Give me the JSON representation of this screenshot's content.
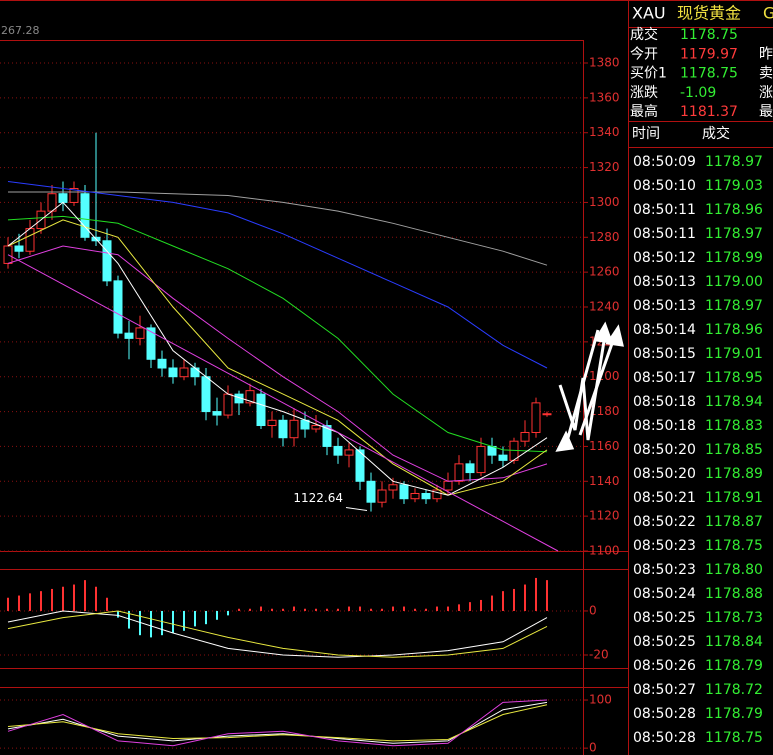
{
  "header": {
    "symbol": "XAU",
    "name": "现货黄金",
    "code": "G"
  },
  "quote": [
    {
      "label": "成交",
      "value": "1178.75",
      "color": "#33ee33"
    },
    {
      "label": "今开",
      "value": "1179.97",
      "color": "#ff3b3b",
      "extra": "昨"
    },
    {
      "label": "买价1",
      "value": "1178.75",
      "color": "#33ee33",
      "extra": "卖"
    },
    {
      "label": "涨跌",
      "value": "-1.09",
      "color": "#33ee33",
      "extra": "涨"
    },
    {
      "label": "最高",
      "value": "1181.37",
      "color": "#ff3b3b",
      "extra": "最"
    }
  ],
  "trades": {
    "columns": [
      "时间",
      "成交"
    ],
    "color": "#33ee33",
    "rows": [
      [
        "08:50:09",
        "1178.97"
      ],
      [
        "08:50:10",
        "1179.03"
      ],
      [
        "08:50:11",
        "1178.96"
      ],
      [
        "08:50:11",
        "1178.97"
      ],
      [
        "08:50:12",
        "1178.99"
      ],
      [
        "08:50:13",
        "1179.00"
      ],
      [
        "08:50:13",
        "1178.97"
      ],
      [
        "08:50:14",
        "1178.96"
      ],
      [
        "08:50:15",
        "1179.01"
      ],
      [
        "08:50:17",
        "1178.95"
      ],
      [
        "08:50:18",
        "1178.94"
      ],
      [
        "08:50:18",
        "1178.83"
      ],
      [
        "08:50:20",
        "1178.85"
      ],
      [
        "08:50:20",
        "1178.89"
      ],
      [
        "08:50:21",
        "1178.91"
      ],
      [
        "08:50:22",
        "1178.87"
      ],
      [
        "08:50:23",
        "1178.75"
      ],
      [
        "08:50:23",
        "1178.80"
      ],
      [
        "08:50:24",
        "1178.88"
      ],
      [
        "08:50:25",
        "1178.73"
      ],
      [
        "08:50:25",
        "1178.84"
      ],
      [
        "08:50:26",
        "1178.79"
      ],
      [
        "08:50:27",
        "1178.72"
      ],
      [
        "08:50:28",
        "1178.79"
      ],
      [
        "08:50:28",
        "1178.75"
      ]
    ]
  },
  "chart_data": [
    {
      "type": "candlestick",
      "corner_label": "267.28",
      "up_color": "#ff3232",
      "down_color": "#54ffff",
      "xlim": [
        -0.727,
        52.273
      ],
      "ylim": [
        1100,
        1393.2
      ],
      "yticks": [
        1100,
        1120,
        1140,
        1160,
        1180,
        1200,
        1220,
        1240,
        1260,
        1280,
        1300,
        1320,
        1340,
        1360,
        1380
      ],
      "open": [
        1265,
        1275,
        1272,
        1285,
        1295,
        1305,
        1300,
        1305,
        1280,
        1278,
        1255,
        1225,
        1222,
        1228,
        1210,
        1205,
        1200,
        1205,
        1200,
        1180,
        1178,
        1190,
        1185,
        1190,
        1172,
        1175,
        1165,
        1175,
        1170,
        1172,
        1160,
        1155,
        1158,
        1140,
        1128,
        1135,
        1138,
        1130,
        1133,
        1130,
        1135,
        1140,
        1150,
        1145,
        1160,
        1155,
        1152,
        1163,
        1168,
        1178.75
      ],
      "high": [
        1280,
        1282,
        1290,
        1300,
        1310,
        1312,
        1312,
        1310,
        1340,
        1285,
        1258,
        1232,
        1235,
        1230,
        1215,
        1210,
        1210,
        1208,
        1205,
        1188,
        1195,
        1192,
        1196,
        1193,
        1180,
        1178,
        1182,
        1180,
        1178,
        1175,
        1165,
        1162,
        1160,
        1145,
        1140,
        1142,
        1140,
        1136,
        1135,
        1138,
        1145,
        1155,
        1152,
        1165,
        1165,
        1160,
        1165,
        1175,
        1188,
        1180
      ],
      "low": [
        1262,
        1268,
        1270,
        1282,
        1290,
        1295,
        1298,
        1278,
        1275,
        1252,
        1222,
        1210,
        1218,
        1205,
        1200,
        1196,
        1198,
        1195,
        1175,
        1172,
        1176,
        1178,
        1183,
        1170,
        1165,
        1160,
        1160,
        1165,
        1168,
        1155,
        1150,
        1148,
        1135,
        1122.64,
        1125,
        1130,
        1127,
        1128,
        1127,
        1128,
        1132,
        1138,
        1140,
        1143,
        1150,
        1148,
        1150,
        1160,
        1165,
        1177
      ],
      "close": [
        1275,
        1272,
        1285,
        1295,
        1305,
        1300,
        1308,
        1280,
        1278,
        1255,
        1225,
        1222,
        1228,
        1210,
        1205,
        1200,
        1205,
        1200,
        1180,
        1178,
        1190,
        1185,
        1192,
        1172,
        1175,
        1165,
        1175,
        1170,
        1172,
        1160,
        1155,
        1158,
        1140,
        1128,
        1135,
        1138,
        1130,
        1133,
        1130,
        1135,
        1140,
        1150,
        1145,
        1160,
        1155,
        1152,
        1163,
        1168,
        1185,
        1178.75
      ],
      "series": [
        {
          "color": "#a0a0a0",
          "x": [
            0,
            5,
            10,
            15,
            20,
            25,
            30,
            35,
            40,
            45,
            49
          ],
          "values": [
            1306,
            1306,
            1306,
            1305,
            1304,
            1300,
            1295,
            1288,
            1280,
            1272,
            1264
          ]
        },
        {
          "color": "#2a3cff",
          "x": [
            0,
            5,
            10,
            15,
            20,
            25,
            30,
            35,
            40,
            45,
            49
          ],
          "values": [
            1312,
            1308,
            1304,
            1300,
            1294,
            1282,
            1268,
            1254,
            1240,
            1218,
            1205
          ]
        },
        {
          "color": "#22dd22",
          "x": [
            0,
            5,
            10,
            15,
            20,
            25,
            30,
            35,
            40,
            45,
            49
          ],
          "values": [
            1290,
            1292,
            1288,
            1275,
            1262,
            1245,
            1222,
            1190,
            1168,
            1158,
            1157
          ]
        },
        {
          "color": "#e040e0",
          "x": [
            0,
            5,
            10,
            15,
            20,
            25,
            30,
            35,
            40,
            45,
            49
          ],
          "values": [
            1265,
            1275,
            1270,
            1245,
            1222,
            1200,
            1180,
            1155,
            1140,
            1142,
            1150
          ]
        },
        {
          "color": "#e8e840",
          "x": [
            0,
            5,
            10,
            15,
            20,
            25,
            30,
            35,
            40,
            45,
            49
          ],
          "values": [
            1275,
            1290,
            1280,
            1240,
            1205,
            1190,
            1175,
            1150,
            1132,
            1140,
            1158
          ]
        },
        {
          "color": "#ffffff",
          "x": [
            0,
            5,
            10,
            15,
            20,
            25,
            30,
            35,
            40,
            45,
            49
          ],
          "values": [
            1275,
            1300,
            1265,
            1215,
            1190,
            1180,
            1168,
            1140,
            1132,
            1148,
            1165
          ]
        },
        {
          "color": "#e040e0",
          "x": [
            0,
            50
          ],
          "values": [
            1270,
            1100
          ]
        }
      ],
      "annotation": {
        "text": "1122.64",
        "x": 33,
        "y": 1122.64
      }
    },
    {
      "type": "bar",
      "up_color": "#ff3232",
      "down_color": "#54ffff",
      "xlim": [
        -0.727,
        52.273
      ],
      "ylim": [
        -25.9,
        18.6
      ],
      "yticks": [
        -20,
        0
      ],
      "values": [
        6,
        7,
        8,
        9,
        10,
        11,
        12,
        14,
        11,
        6,
        -3,
        -8,
        -11,
        -12,
        -11,
        -10,
        -9,
        -7,
        -6,
        -4,
        -2,
        1,
        1,
        2,
        1,
        1,
        2,
        1,
        1,
        1,
        1,
        2,
        2,
        1,
        1,
        2,
        2,
        1,
        1,
        2,
        2,
        3,
        4,
        5,
        7,
        9,
        10,
        12,
        15,
        14
      ],
      "series": [
        {
          "color": "#ffffff",
          "x": [
            0,
            5,
            10,
            15,
            20,
            25,
            30,
            35,
            40,
            45,
            49
          ],
          "values": [
            -5,
            0,
            -2,
            -10,
            -17,
            -20,
            -21,
            -20,
            -18,
            -14,
            -3
          ]
        },
        {
          "color": "#e8e840",
          "x": [
            0,
            5,
            10,
            15,
            20,
            25,
            30,
            35,
            40,
            45,
            49
          ],
          "values": [
            -8,
            -3,
            0,
            -6,
            -12,
            -17,
            -20,
            -21,
            -20,
            -17,
            -7
          ]
        }
      ]
    },
    {
      "type": "line",
      "xlim": [
        -0.727,
        52.273
      ],
      "ylim": [
        -8,
        125
      ],
      "yticks": [
        0,
        100
      ],
      "series": [
        {
          "color": "#ffffff",
          "x": [
            0,
            5,
            10,
            15,
            20,
            25,
            30,
            35,
            40,
            45,
            49
          ],
          "values": [
            40,
            60,
            25,
            15,
            25,
            30,
            20,
            10,
            15,
            80,
            95
          ]
        },
        {
          "color": "#e8e840",
          "x": [
            0,
            5,
            10,
            15,
            20,
            25,
            30,
            35,
            40,
            45,
            49
          ],
          "values": [
            45,
            55,
            30,
            20,
            22,
            28,
            22,
            15,
            18,
            70,
            90
          ]
        },
        {
          "color": "#e040e0",
          "x": [
            0,
            5,
            10,
            15,
            20,
            25,
            30,
            35,
            40,
            45,
            49
          ],
          "values": [
            35,
            70,
            15,
            5,
            30,
            35,
            15,
            5,
            10,
            95,
            100
          ]
        }
      ]
    }
  ]
}
